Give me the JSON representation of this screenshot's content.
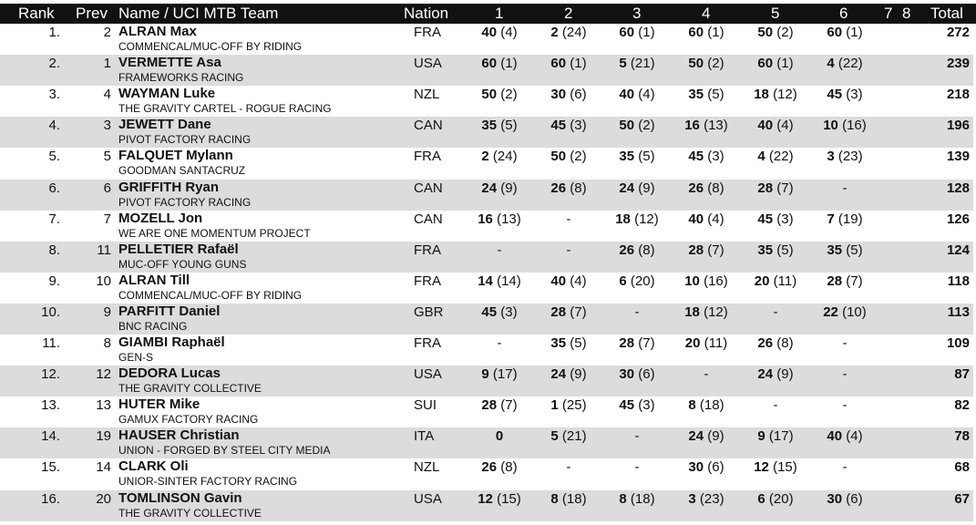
{
  "colors": {
    "header_bg": "#111111",
    "header_text": "#ffffff",
    "alt_row": "#dcdcdc"
  },
  "headers": {
    "rank": "Rank",
    "prev": "Prev",
    "name": "Name / UCI MTB Team",
    "nation": "Nation",
    "r1": "1",
    "r2": "2",
    "r3": "3",
    "r4": "4",
    "r5": "5",
    "r6": "6",
    "r7": "7",
    "r8": "8",
    "total": "Total"
  },
  "rows": [
    {
      "rank": "1.",
      "prev": "2",
      "name": "ALRAN Max",
      "team": "COMMENCAL/MUC-OFF BY RIDING",
      "nation": "FRA",
      "results": [
        [
          "40",
          "(4)"
        ],
        [
          "2",
          "(24)"
        ],
        [
          "60",
          "(1)"
        ],
        [
          "60",
          "(1)"
        ],
        [
          "50",
          "(2)"
        ],
        [
          "60",
          "(1)"
        ]
      ],
      "total": "272"
    },
    {
      "rank": "2.",
      "prev": "1",
      "name": "VERMETTE Asa",
      "team": "FRAMEWORKS RACING",
      "nation": "USA",
      "results": [
        [
          "60",
          "(1)"
        ],
        [
          "60",
          "(1)"
        ],
        [
          "5",
          "(21)"
        ],
        [
          "50",
          "(2)"
        ],
        [
          "60",
          "(1)"
        ],
        [
          "4",
          "(22)"
        ]
      ],
      "total": "239"
    },
    {
      "rank": "3.",
      "prev": "4",
      "name": "WAYMAN Luke",
      "team": "THE GRAVITY CARTEL - ROGUE RACING",
      "nation": "NZL",
      "results": [
        [
          "50",
          "(2)"
        ],
        [
          "30",
          "(6)"
        ],
        [
          "40",
          "(4)"
        ],
        [
          "35",
          "(5)"
        ],
        [
          "18",
          "(12)"
        ],
        [
          "45",
          "(3)"
        ]
      ],
      "total": "218"
    },
    {
      "rank": "4.",
      "prev": "3",
      "name": "JEWETT Dane",
      "team": "PIVOT FACTORY RACING",
      "nation": "CAN",
      "results": [
        [
          "35",
          "(5)"
        ],
        [
          "45",
          "(3)"
        ],
        [
          "50",
          "(2)"
        ],
        [
          "16",
          "(13)"
        ],
        [
          "40",
          "(4)"
        ],
        [
          "10",
          "(16)"
        ]
      ],
      "total": "196"
    },
    {
      "rank": "5.",
      "prev": "5",
      "name": "FALQUET Mylann",
      "team": "GOODMAN SANTACRUZ",
      "nation": "FRA",
      "results": [
        [
          "2",
          "(24)"
        ],
        [
          "50",
          "(2)"
        ],
        [
          "35",
          "(5)"
        ],
        [
          "45",
          "(3)"
        ],
        [
          "4",
          "(22)"
        ],
        [
          "3",
          "(23)"
        ]
      ],
      "total": "139"
    },
    {
      "rank": "6.",
      "prev": "6",
      "name": "GRIFFITH Ryan",
      "team": "PIVOT FACTORY RACING",
      "nation": "CAN",
      "results": [
        [
          "24",
          "(9)"
        ],
        [
          "26",
          "(8)"
        ],
        [
          "24",
          "(9)"
        ],
        [
          "26",
          "(8)"
        ],
        [
          "28",
          "(7)"
        ],
        [
          "-",
          ""
        ]
      ],
      "total": "128"
    },
    {
      "rank": "7.",
      "prev": "7",
      "name": "MOZELL Jon",
      "team": "WE ARE ONE MOMENTUM PROJECT",
      "nation": "CAN",
      "results": [
        [
          "16",
          "(13)"
        ],
        [
          "-",
          ""
        ],
        [
          "18",
          "(12)"
        ],
        [
          "40",
          "(4)"
        ],
        [
          "45",
          "(3)"
        ],
        [
          "7",
          "(19)"
        ]
      ],
      "total": "126"
    },
    {
      "rank": "8.",
      "prev": "11",
      "name": "PELLETIER Rafaël",
      "team": "MUC-OFF YOUNG GUNS",
      "nation": "FRA",
      "results": [
        [
          "-",
          ""
        ],
        [
          "-",
          ""
        ],
        [
          "26",
          "(8)"
        ],
        [
          "28",
          "(7)"
        ],
        [
          "35",
          "(5)"
        ],
        [
          "35",
          "(5)"
        ]
      ],
      "total": "124"
    },
    {
      "rank": "9.",
      "prev": "10",
      "name": "ALRAN Till",
      "team": "COMMENCAL/MUC-OFF BY RIDING",
      "nation": "FRA",
      "results": [
        [
          "14",
          "(14)"
        ],
        [
          "40",
          "(4)"
        ],
        [
          "6",
          "(20)"
        ],
        [
          "10",
          "(16)"
        ],
        [
          "20",
          "(11)"
        ],
        [
          "28",
          "(7)"
        ]
      ],
      "total": "118"
    },
    {
      "rank": "10.",
      "prev": "9",
      "name": "PARFITT Daniel",
      "team": "BNC RACING",
      "nation": "GBR",
      "results": [
        [
          "45",
          "(3)"
        ],
        [
          "28",
          "(7)"
        ],
        [
          "-",
          ""
        ],
        [
          "18",
          "(12)"
        ],
        [
          "-",
          ""
        ],
        [
          "22",
          "(10)"
        ]
      ],
      "total": "113"
    },
    {
      "rank": "11.",
      "prev": "8",
      "name": "GIAMBI Raphaël",
      "team": "GEN-S",
      "nation": "FRA",
      "results": [
        [
          "-",
          ""
        ],
        [
          "35",
          "(5)"
        ],
        [
          "28",
          "(7)"
        ],
        [
          "20",
          "(11)"
        ],
        [
          "26",
          "(8)"
        ],
        [
          "-",
          ""
        ]
      ],
      "total": "109"
    },
    {
      "rank": "12.",
      "prev": "12",
      "name": "DEDORA Lucas",
      "team": "THE GRAVITY COLLECTIVE",
      "nation": "USA",
      "results": [
        [
          "9",
          "(17)"
        ],
        [
          "24",
          "(9)"
        ],
        [
          "30",
          "(6)"
        ],
        [
          "-",
          ""
        ],
        [
          "24",
          "(9)"
        ],
        [
          "-",
          ""
        ]
      ],
      "total": "87"
    },
    {
      "rank": "13.",
      "prev": "13",
      "name": "HUTER Mike",
      "team": "GAMUX FACTORY RACING",
      "nation": "SUI",
      "results": [
        [
          "28",
          "(7)"
        ],
        [
          "1",
          "(25)"
        ],
        [
          "45",
          "(3)"
        ],
        [
          "8",
          "(18)"
        ],
        [
          "-",
          ""
        ],
        [
          "-",
          ""
        ]
      ],
      "total": "82"
    },
    {
      "rank": "14.",
      "prev": "19",
      "name": "HAUSER Christian",
      "team": "UNION - FORGED BY STEEL CITY MEDIA",
      "nation": "ITA",
      "results": [
        [
          "0",
          ""
        ],
        [
          "5",
          "(21)"
        ],
        [
          "-",
          ""
        ],
        [
          "24",
          "(9)"
        ],
        [
          "9",
          "(17)"
        ],
        [
          "40",
          "(4)"
        ]
      ],
      "total": "78"
    },
    {
      "rank": "15.",
      "prev": "14",
      "name": "CLARK Oli",
      "team": "UNIOR-SINTER FACTORY RACING",
      "nation": "NZL",
      "results": [
        [
          "26",
          "(8)"
        ],
        [
          "-",
          ""
        ],
        [
          "-",
          ""
        ],
        [
          "30",
          "(6)"
        ],
        [
          "12",
          "(15)"
        ],
        [
          "-",
          ""
        ]
      ],
      "total": "68"
    },
    {
      "rank": "16.",
      "prev": "20",
      "name": "TOMLINSON Gavin",
      "team": "THE GRAVITY COLLECTIVE",
      "nation": "USA",
      "results": [
        [
          "12",
          "(15)"
        ],
        [
          "8",
          "(18)"
        ],
        [
          "8",
          "(18)"
        ],
        [
          "3",
          "(23)"
        ],
        [
          "6",
          "(20)"
        ],
        [
          "30",
          "(6)"
        ]
      ],
      "total": "67"
    }
  ]
}
